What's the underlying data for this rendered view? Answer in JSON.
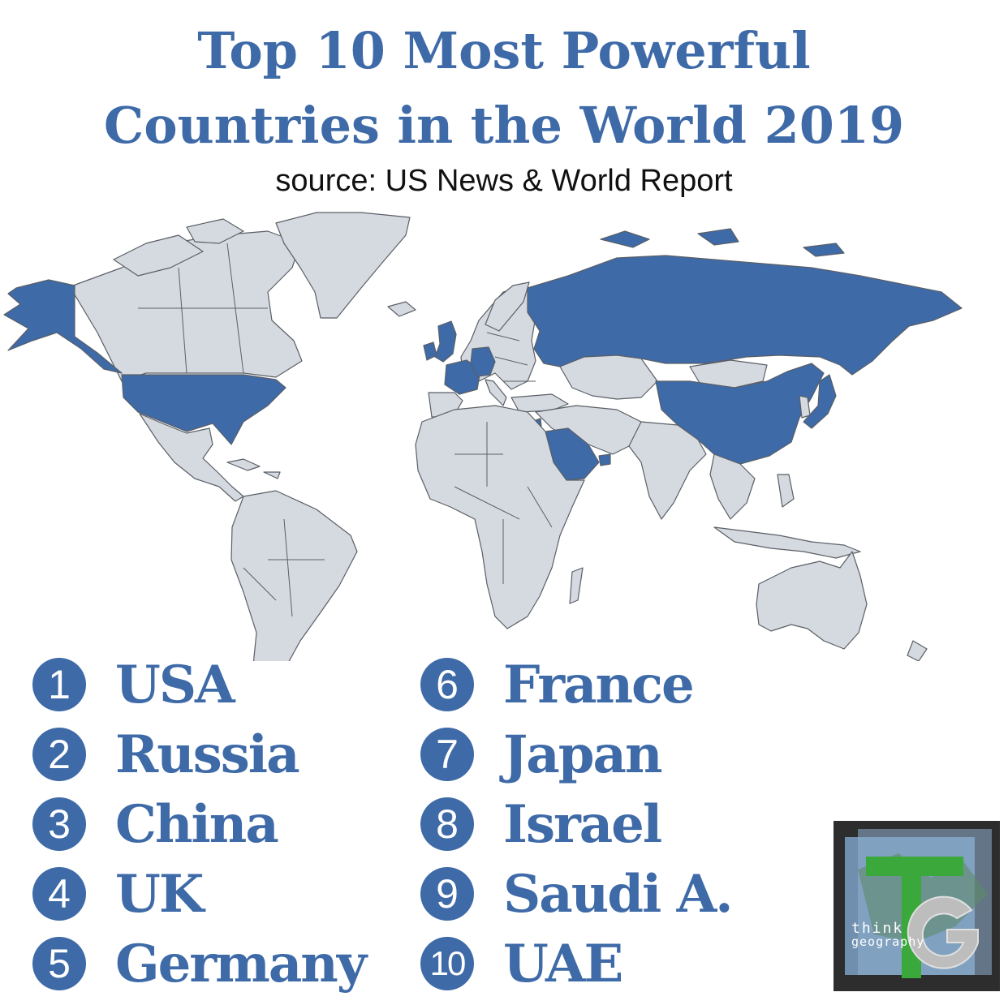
{
  "title": {
    "line1": "Top 10 Most Powerful",
    "line2": "Countries in the World 2019",
    "source": "source: US News & World Report"
  },
  "map": {
    "highlight_color": "#3e6aa8",
    "land_color": "#d5d9e0",
    "border_color": "#5a5f66",
    "highlighted_countries": [
      "USA",
      "Russia",
      "China",
      "UK",
      "Germany",
      "France",
      "Japan",
      "Israel",
      "Saudi A.",
      "UAE"
    ]
  },
  "rankings": [
    {
      "rank": "1",
      "country": "USA"
    },
    {
      "rank": "2",
      "country": "Russia"
    },
    {
      "rank": "3",
      "country": "China"
    },
    {
      "rank": "4",
      "country": "UK"
    },
    {
      "rank": "5",
      "country": "Germany"
    },
    {
      "rank": "6",
      "country": "France"
    },
    {
      "rank": "7",
      "country": "Japan"
    },
    {
      "rank": "8",
      "country": "Israel"
    },
    {
      "rank": "9",
      "country": "Saudi A."
    },
    {
      "rank": "10",
      "country": "UAE"
    }
  ],
  "logo": {
    "letters": "TG",
    "text_think": "think",
    "text_geography": "geography"
  }
}
